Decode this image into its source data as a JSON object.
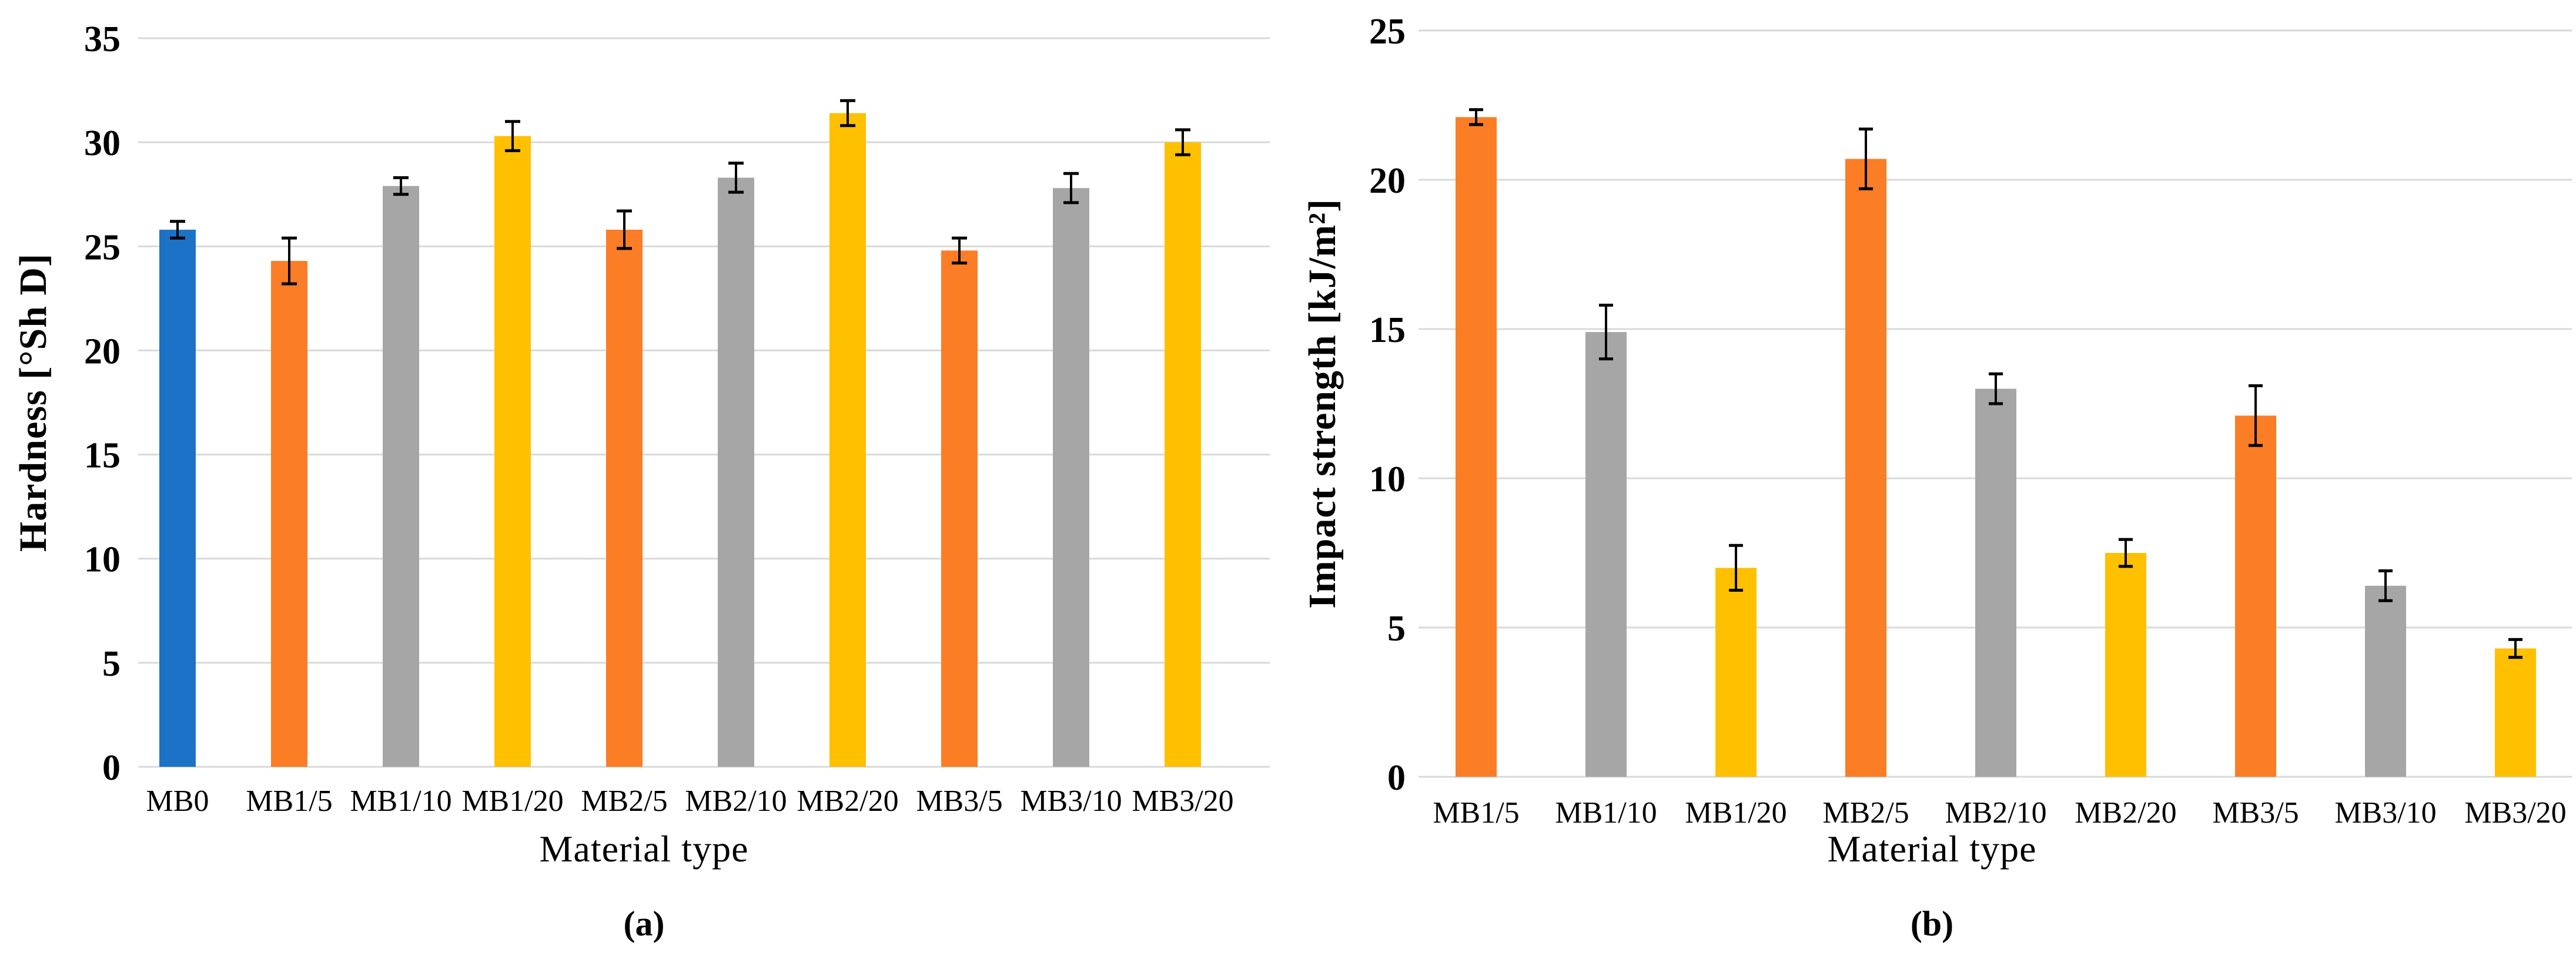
{
  "figure": {
    "background": "#FFFFFF",
    "description": "Two-panel bar chart figure comparing material types"
  },
  "palette": {
    "blue": "#1C72C6",
    "orange": "#FB7D26",
    "gray": "#A6A6A6",
    "yellow": "#FFC000",
    "gridline": "#D9D9D9",
    "error_bar": "#000000",
    "text": "#000000"
  },
  "chart_data": [
    {
      "type": "bar",
      "panel_label": "(a)",
      "xlabel": "Material type",
      "ylabel": "Hardness [°Sh D]",
      "ylim": [
        0,
        35
      ],
      "yticks": [
        0,
        5,
        10,
        15,
        20,
        25,
        30,
        35
      ],
      "grid": "horizontal",
      "legend": "none",
      "categories": [
        "MB0",
        "MB1/5",
        "MB1/10",
        "MB1/20",
        "MB2/5",
        "MB2/10",
        "MB2/20",
        "MB3/5",
        "MB3/10",
        "MB3/20"
      ],
      "values": [
        25.8,
        24.3,
        27.9,
        30.3,
        25.8,
        28.3,
        31.4,
        24.8,
        27.8,
        30.0
      ],
      "errors": [
        0.4,
        1.1,
        0.4,
        0.7,
        0.9,
        0.7,
        0.6,
        0.6,
        0.7,
        0.6
      ],
      "bar_colors": [
        "blue",
        "orange",
        "gray",
        "yellow",
        "orange",
        "gray",
        "yellow",
        "orange",
        "gray",
        "yellow"
      ]
    },
    {
      "type": "bar",
      "panel_label": "(b)",
      "xlabel": "Material type",
      "ylabel": "Impact strength [kJ/m²]",
      "ylim": [
        0,
        25
      ],
      "yticks": [
        0,
        5,
        10,
        15,
        20,
        25
      ],
      "grid": "horizontal",
      "legend": "none",
      "categories": [
        "MB1/5",
        "MB1/10",
        "MB1/20",
        "MB2/5",
        "MB2/10",
        "MB2/20",
        "MB3/5",
        "MB3/10",
        "MB3/20"
      ],
      "values": [
        22.1,
        14.9,
        7.0,
        20.7,
        13.0,
        7.5,
        12.1,
        6.4,
        4.3
      ],
      "errors": [
        0.25,
        0.9,
        0.75,
        1.0,
        0.5,
        0.45,
        1.0,
        0.5,
        0.3
      ],
      "bar_colors": [
        "orange",
        "gray",
        "yellow",
        "orange",
        "gray",
        "yellow",
        "orange",
        "gray",
        "yellow"
      ]
    }
  ]
}
